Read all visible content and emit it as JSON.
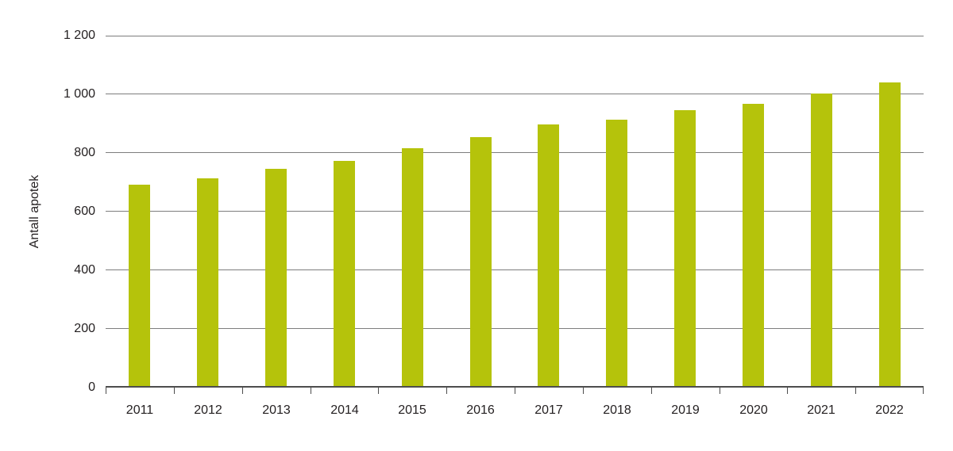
{
  "chart_data": {
    "type": "bar",
    "title": "",
    "xlabel": "",
    "ylabel": "Antall apotek",
    "categories": [
      "2011",
      "2012",
      "2013",
      "2014",
      "2015",
      "2016",
      "2017",
      "2018",
      "2019",
      "2020",
      "2021",
      "2022"
    ],
    "values": [
      686,
      708,
      740,
      768,
      812,
      848,
      892,
      909,
      941,
      962,
      996,
      1035
    ],
    "ylim": [
      0,
      1200
    ],
    "ytick_step": 200,
    "ytick_labels": [
      "0",
      "200",
      "400",
      "600",
      "800",
      "1 000",
      "1 200"
    ],
    "grid": true,
    "legend_position": "none",
    "colors": {
      "bar": "#b5c30b",
      "gridline": "#7d7d7d",
      "axis": "#4d4d4d",
      "text": "#231f20"
    }
  }
}
